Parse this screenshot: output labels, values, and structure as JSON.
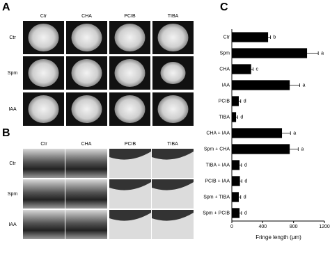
{
  "panel_a": {
    "label": "A",
    "columns": [
      "Ctr",
      "CHA",
      "PCIB",
      "TIBA"
    ],
    "rows": [
      "Ctr",
      "Spm",
      "IAA"
    ]
  },
  "panel_b": {
    "label": "B",
    "columns": [
      "Ctr",
      "CHA",
      "PCIB",
      "TIBA"
    ],
    "rows": [
      "Ctr",
      "Spm",
      "IAA"
    ]
  },
  "panel_c": {
    "label": "C"
  },
  "chart_data": {
    "type": "hbar",
    "categories": [
      "Ctr",
      "Spm",
      "CHA",
      "IAA",
      "PCIB",
      "TIBA",
      "CHA + IAA",
      "Spm + CHA",
      "TIBA + IAA",
      "PCIB + IAA",
      "Spm + TIBA",
      "Spm + PCIB"
    ],
    "values": [
      470,
      975,
      250,
      750,
      90,
      55,
      650,
      750,
      100,
      105,
      90,
      100
    ],
    "errors": [
      30,
      145,
      25,
      130,
      25,
      20,
      110,
      110,
      25,
      25,
      25,
      25
    ],
    "letters": [
      "b",
      "a",
      "c",
      "a",
      "d",
      "d",
      "a",
      "a",
      "d",
      "d",
      "d",
      "d"
    ],
    "color": "#000000",
    "xlim": [
      0,
      1200
    ],
    "xticks": [
      0,
      400,
      800,
      1200
    ],
    "x_label": "Fringe length (μm)"
  }
}
